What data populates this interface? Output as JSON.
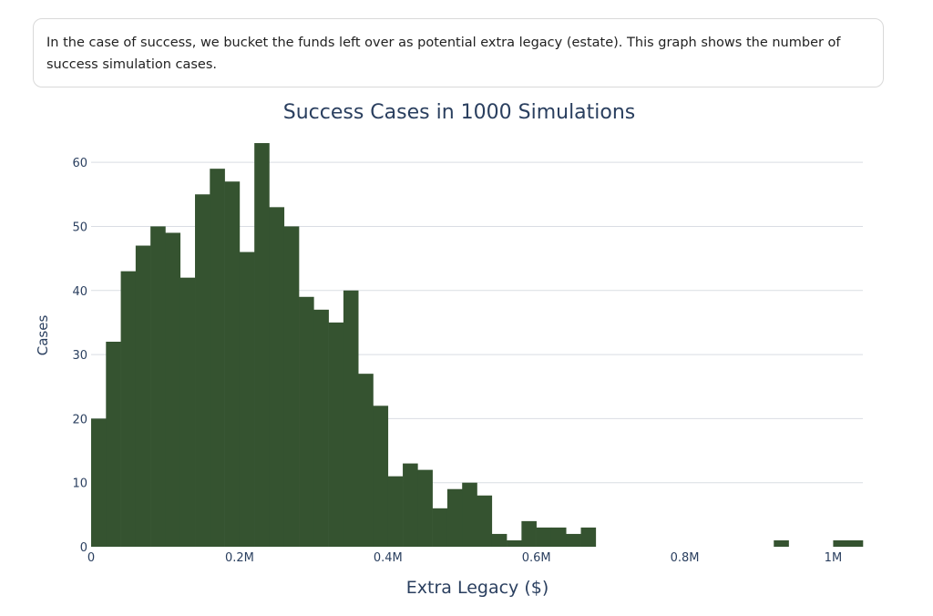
{
  "note": {
    "text": "In the case of success, we bucket the funds left over as potential extra legacy (estate). This graph shows the number of success simulation cases."
  },
  "chart_data": {
    "type": "bar",
    "title": "Success Cases in 1000 Simulations",
    "xlabel": "Extra Legacy ($)",
    "ylabel": "Cases",
    "bin_width": 20000,
    "bins_start": [
      0,
      20000,
      40000,
      60000,
      80000,
      100000,
      120000,
      140000,
      160000,
      180000,
      200000,
      220000,
      240000,
      260000,
      280000,
      300000,
      320000,
      340000,
      360000,
      380000,
      400000,
      420000,
      440000,
      460000,
      480000,
      500000,
      520000,
      540000,
      560000,
      580000,
      600000,
      620000,
      640000,
      660000,
      920000,
      1000000,
      1020000
    ],
    "values": [
      20,
      32,
      43,
      47,
      50,
      49,
      42,
      55,
      59,
      57,
      46,
      63,
      53,
      50,
      39,
      37,
      35,
      40,
      27,
      22,
      11,
      13,
      12,
      6,
      9,
      10,
      8,
      2,
      1,
      4,
      3,
      3,
      2,
      3,
      1,
      1,
      1
    ],
    "xlim": [
      0,
      1040000
    ],
    "ylim": [
      0,
      64
    ],
    "x_ticks": [
      {
        "value": 0,
        "label": "0"
      },
      {
        "value": 200000,
        "label": "0.2M"
      },
      {
        "value": 400000,
        "label": "0.4M"
      },
      {
        "value": 600000,
        "label": "0.6M"
      },
      {
        "value": 800000,
        "label": "0.8M"
      },
      {
        "value": 1000000,
        "label": "1M"
      }
    ],
    "y_ticks": [
      {
        "value": 0,
        "label": "0"
      },
      {
        "value": 10,
        "label": "10"
      },
      {
        "value": 20,
        "label": "20"
      },
      {
        "value": 30,
        "label": "30"
      },
      {
        "value": 40,
        "label": "40"
      },
      {
        "value": 50,
        "label": "50"
      },
      {
        "value": 60,
        "label": "60"
      }
    ],
    "grid": true,
    "colors": {
      "bar": "#355330",
      "grid": "#d9dde3",
      "text": "#2a3f5f"
    }
  }
}
